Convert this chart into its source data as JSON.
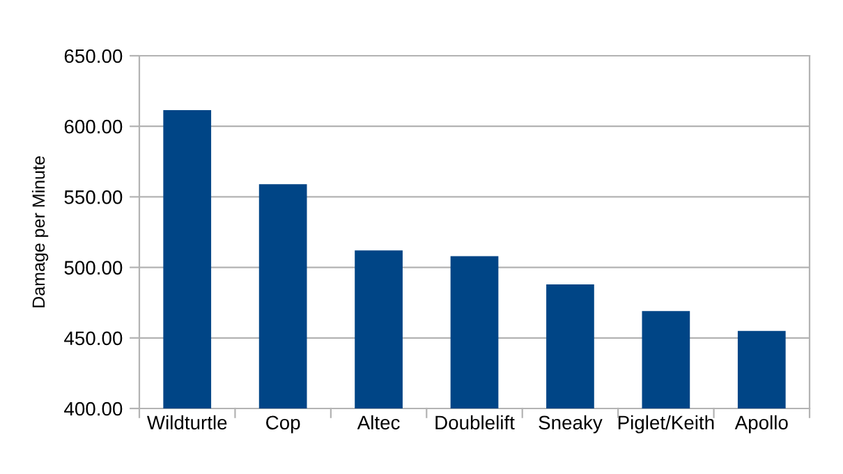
{
  "chart_data": {
    "type": "bar",
    "ylabel": "Damage per Minute",
    "categories": [
      "Wildturtle",
      "Cop",
      "Altec",
      "Doublelift",
      "Sneaky",
      "Piglet/Keith",
      "Apollo"
    ],
    "values": [
      611.5,
      559,
      512,
      508,
      488,
      469,
      455
    ],
    "color": "#004586",
    "ylim": [
      400,
      650
    ],
    "yticks": [
      {
        "value": 400,
        "label": "400.00"
      },
      {
        "value": 450,
        "label": "450.00"
      },
      {
        "value": 500,
        "label": "500.00"
      },
      {
        "value": 550,
        "label": "550.00"
      },
      {
        "value": 600,
        "label": "600.00"
      },
      {
        "value": 650,
        "label": "650.00"
      }
    ],
    "grid": "y"
  }
}
